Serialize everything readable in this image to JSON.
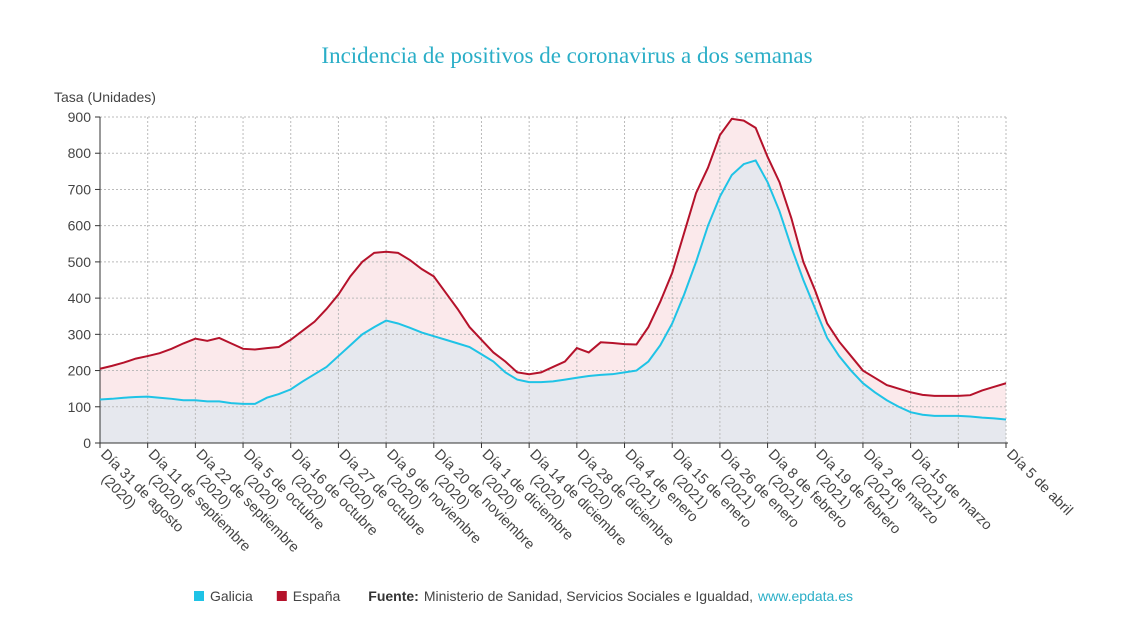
{
  "chart_data": {
    "type": "line",
    "title": "Incidencia de positivos de coronavirus a dos semanas",
    "y_label": "Tasa (Unidades)",
    "categories": [
      "Día 31 de agosto (2020)",
      null,
      null,
      null,
      "Día 11 de septiembre (2020)",
      null,
      null,
      null,
      "Día 22 de septiembre (2020)",
      null,
      null,
      null,
      "Día 5 de octubre (2020)",
      null,
      null,
      null,
      "Día 16 de octubre (2020)",
      null,
      null,
      null,
      "Día 27 de octubre (2020)",
      null,
      null,
      null,
      "Día 9 de noviembre (2020)",
      null,
      null,
      null,
      "Día 20 de noviembre (2020)",
      null,
      null,
      null,
      "Día 1 de diciembre (2020)",
      null,
      null,
      null,
      "Día 14 de diciembre (2020)",
      null,
      null,
      null,
      "Día 28 de diciembre (2020)",
      null,
      null,
      null,
      "Día 4 de enero (2021)",
      null,
      null,
      null,
      "Día 15 de enero (2021)",
      null,
      null,
      null,
      "Día 26 de enero (2021)",
      null,
      null,
      null,
      "Día 8 de febrero (2021)",
      null,
      null,
      null,
      "Día 19 de febrero (2021)",
      null,
      null,
      null,
      "Día 2 de marzo (2021)",
      null,
      null,
      null,
      "Día 15 de marzo (2021)",
      null,
      null,
      null,
      null,
      null,
      null,
      null,
      "Día 5 de abril"
    ],
    "series": [
      {
        "name": "España",
        "color": "#b5122b",
        "fill": "#fbe9eb",
        "values": [
          205,
          213,
          222,
          233,
          240,
          248,
          260,
          275,
          288,
          282,
          290,
          275,
          260,
          258,
          262,
          265,
          285,
          310,
          335,
          370,
          410,
          460,
          500,
          525,
          528,
          525,
          505,
          480,
          460,
          415,
          370,
          320,
          285,
          250,
          225,
          195,
          190,
          195,
          210,
          225,
          262,
          250,
          278,
          276,
          273,
          272,
          320,
          390,
          470,
          580,
          690,
          760,
          850,
          895,
          890,
          870,
          790,
          720,
          620,
          500,
          420,
          330,
          280,
          240,
          200,
          180,
          160,
          150,
          140,
          133,
          130,
          130,
          130,
          132,
          145,
          155,
          165
        ]
      },
      {
        "name": "Galicia",
        "color": "#1fc3e6",
        "fill": "#e6e8ee",
        "values": [
          120,
          122,
          125,
          127,
          128,
          125,
          122,
          118,
          118,
          115,
          115,
          110,
          108,
          108,
          125,
          135,
          148,
          170,
          190,
          210,
          240,
          270,
          300,
          320,
          338,
          330,
          318,
          305,
          295,
          285,
          275,
          265,
          245,
          225,
          195,
          175,
          168,
          168,
          170,
          175,
          180,
          185,
          188,
          190,
          195,
          200,
          225,
          270,
          330,
          410,
          500,
          600,
          680,
          740,
          770,
          780,
          720,
          640,
          540,
          450,
          370,
          290,
          240,
          200,
          165,
          140,
          118,
          100,
          85,
          78,
          75,
          75,
          75,
          73,
          70,
          68,
          65
        ]
      }
    ],
    "ylim": [
      0,
      900
    ],
    "yticks": [
      0,
      100,
      200,
      300,
      400,
      500,
      600,
      700,
      800,
      900
    ],
    "grid": true,
    "legend_order": [
      1,
      0
    ],
    "source_label": "Fuente:",
    "source": "Ministerio de Sanidad, Servicios Sociales e Igualdad,",
    "source_link": "www.epdata.es"
  }
}
